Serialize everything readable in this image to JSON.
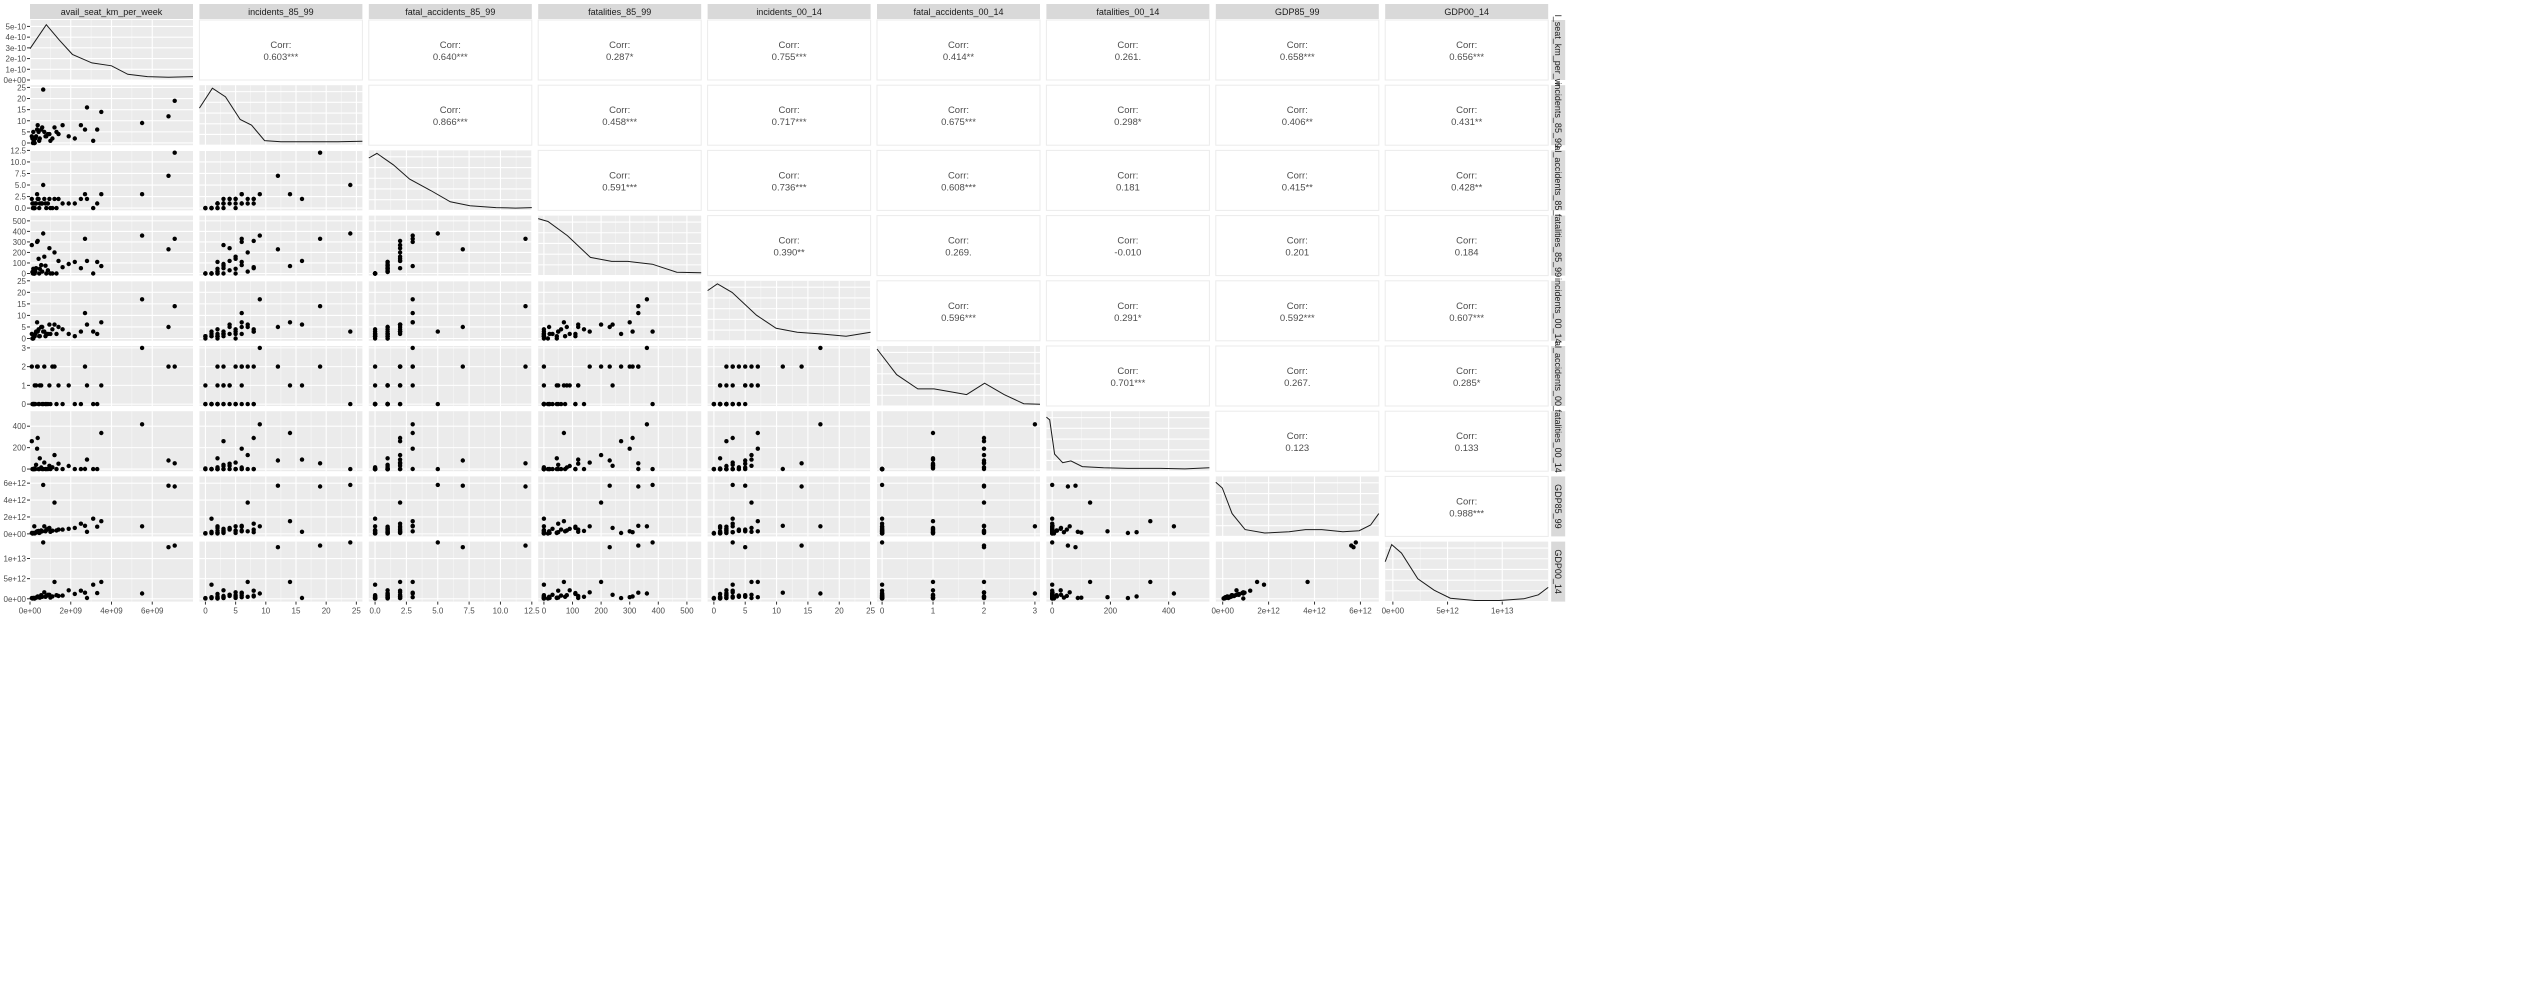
{
  "chart_data": {
    "type": "scatter",
    "variables": [
      "avail_seat_km_per_week",
      "incidents_85_99",
      "fatal_accidents_85_99",
      "fatalities_85_99",
      "incidents_00_14",
      "fatal_accidents_00_14",
      "fatalities_00_14",
      "GDP85_99",
      "GDP00_14"
    ],
    "strip_labels_right": [
      "l_seat_km_per_w",
      "incidents_85_99",
      "al_accidents_85_",
      "fatalities_85_99",
      "incidents_00_14",
      "al_accidents_00_",
      "fatalities_00_14",
      "GDP85_99",
      "GDP00_14"
    ],
    "corr_label": "Corr:",
    "correlations": [
      [
        null,
        "0.603***",
        "0.640***",
        "0.287*",
        "0.755***",
        "0.414**",
        "0.261.",
        "0.658***",
        "0.656***"
      ],
      [
        null,
        null,
        "0.866***",
        "0.458***",
        "0.717***",
        "0.675***",
        "0.298*",
        "0.406**",
        "0.431**"
      ],
      [
        null,
        null,
        null,
        "0.591***",
        "0.736***",
        "0.608***",
        "0.181",
        "0.415**",
        "0.428**"
      ],
      [
        null,
        null,
        null,
        null,
        "0.390**",
        "0.269.",
        "-0.010",
        "0.201",
        "0.184"
      ],
      [
        null,
        null,
        null,
        null,
        null,
        "0.596***",
        "0.291*",
        "0.592***",
        "0.607***"
      ],
      [
        null,
        null,
        null,
        null,
        null,
        null,
        "0.701***",
        "0.267.",
        "0.285*"
      ],
      [
        null,
        null,
        null,
        null,
        null,
        null,
        null,
        "0.123",
        "0.133"
      ],
      [
        null,
        null,
        null,
        null,
        null,
        null,
        null,
        null,
        "0.988***"
      ]
    ],
    "axes": [
      {
        "lim": [
          0,
          8000000000
        ],
        "ticks": [
          0,
          2000000000,
          4000000000,
          6000000000
        ],
        "labels": [
          "0e+00",
          "2e+09",
          "4e+09",
          "6e+09"
        ]
      },
      {
        "lim": [
          -1,
          26
        ],
        "ticks": [
          0,
          5,
          10,
          15,
          20,
          25
        ],
        "labels": [
          "0",
          "5",
          "10",
          "15",
          "20",
          "25"
        ]
      },
      {
        "lim": [
          -0.5,
          12.5
        ],
        "ticks": [
          0,
          2.5,
          5,
          7.5,
          10,
          12.5
        ],
        "labels": [
          "0.0",
          "2.5",
          "5.0",
          "7.5",
          "10.0",
          "12.5"
        ]
      },
      {
        "lim": [
          -20,
          550
        ],
        "ticks": [
          0,
          100,
          200,
          300,
          400,
          500
        ],
        "labels": [
          "0",
          "100",
          "200",
          "300",
          "400",
          "500"
        ]
      },
      {
        "lim": [
          -1,
          25
        ],
        "ticks": [
          0,
          5,
          10,
          15,
          20,
          25
        ],
        "labels": [
          "0",
          "5",
          "10",
          "15",
          "20",
          "25"
        ]
      },
      {
        "lim": [
          -0.1,
          3.1
        ],
        "ticks": [
          0,
          1,
          2,
          3
        ],
        "labels": [
          "0",
          "1",
          "2",
          "3"
        ]
      },
      {
        "lim": [
          -20,
          540
        ],
        "ticks": [
          0,
          200,
          400
        ],
        "labels": [
          "0",
          "200",
          "400"
        ]
      },
      {
        "lim": [
          -300000000000,
          6800000000000
        ],
        "ticks": [
          0,
          2000000000000,
          4000000000000,
          6000000000000
        ],
        "labels": [
          "0e+00",
          "2e+12",
          "4e+12",
          "6e+12"
        ]
      },
      {
        "lim": [
          -700000000000,
          14200000000000
        ],
        "ticks": [
          0,
          5000000000000,
          10000000000000
        ],
        "labels": [
          "0e+00",
          "5e+12",
          "1e+13"
        ]
      }
    ],
    "density_y_axis": {
      "lim": [
        0,
        5.6e-10
      ],
      "ticks": [
        0,
        1e-10,
        2e-10,
        3e-10,
        4e-10,
        5e-10
      ],
      "labels": [
        "0e+00",
        "1e-10",
        "2e-10",
        "3e-10",
        "4e-10",
        "5e-10"
      ]
    },
    "densities": [
      [
        [
          0,
          0.55
        ],
        [
          0.1,
          0.97
        ],
        [
          0.18,
          0.7
        ],
        [
          0.26,
          0.45
        ],
        [
          0.38,
          0.3
        ],
        [
          0.5,
          0.25
        ],
        [
          0.6,
          0.1
        ],
        [
          0.72,
          0.06
        ],
        [
          0.85,
          0.05
        ],
        [
          1,
          0.06
        ]
      ],
      [
        [
          0,
          0.65
        ],
        [
          0.08,
          1
        ],
        [
          0.16,
          0.85
        ],
        [
          0.25,
          0.45
        ],
        [
          0.32,
          0.35
        ],
        [
          0.4,
          0.08
        ],
        [
          0.5,
          0.06
        ],
        [
          0.7,
          0.06
        ],
        [
          0.85,
          0.06
        ],
        [
          1,
          0.07
        ]
      ],
      [
        [
          0,
          0.92
        ],
        [
          0.05,
          1
        ],
        [
          0.15,
          0.8
        ],
        [
          0.25,
          0.55
        ],
        [
          0.38,
          0.35
        ],
        [
          0.5,
          0.15
        ],
        [
          0.62,
          0.08
        ],
        [
          0.78,
          0.05
        ],
        [
          0.9,
          0.04
        ],
        [
          1,
          0.05
        ]
      ],
      [
        [
          0,
          1
        ],
        [
          0.06,
          0.95
        ],
        [
          0.18,
          0.7
        ],
        [
          0.32,
          0.32
        ],
        [
          0.45,
          0.25
        ],
        [
          0.55,
          0.25
        ],
        [
          0.7,
          0.2
        ],
        [
          0.85,
          0.06
        ],
        [
          1,
          0.05
        ]
      ],
      [
        [
          0,
          0.88
        ],
        [
          0.06,
          1
        ],
        [
          0.15,
          0.85
        ],
        [
          0.3,
          0.45
        ],
        [
          0.42,
          0.22
        ],
        [
          0.55,
          0.15
        ],
        [
          0.7,
          0.12
        ],
        [
          0.85,
          0.08
        ],
        [
          1,
          0.15
        ]
      ],
      [
        [
          0,
          1
        ],
        [
          0.12,
          0.55
        ],
        [
          0.25,
          0.3
        ],
        [
          0.35,
          0.3
        ],
        [
          0.45,
          0.25
        ],
        [
          0.55,
          0.2
        ],
        [
          0.66,
          0.4
        ],
        [
          0.78,
          0.2
        ],
        [
          0.9,
          0.04
        ],
        [
          1,
          0.03
        ]
      ],
      [
        [
          0,
          0.95
        ],
        [
          0.02,
          0.9
        ],
        [
          0.05,
          0.3
        ],
        [
          0.1,
          0.15
        ],
        [
          0.15,
          0.18
        ],
        [
          0.22,
          0.08
        ],
        [
          0.35,
          0.06
        ],
        [
          0.5,
          0.05
        ],
        [
          0.7,
          0.05
        ],
        [
          0.85,
          0.04
        ],
        [
          1,
          0.06
        ]
      ],
      [
        [
          0,
          0.95
        ],
        [
          0.04,
          0.85
        ],
        [
          0.1,
          0.4
        ],
        [
          0.18,
          0.12
        ],
        [
          0.3,
          0.06
        ],
        [
          0.45,
          0.08
        ],
        [
          0.55,
          0.12
        ],
        [
          0.65,
          0.12
        ],
        [
          0.78,
          0.08
        ],
        [
          0.88,
          0.1
        ],
        [
          0.95,
          0.2
        ],
        [
          1,
          0.4
        ]
      ],
      [
        [
          0,
          0.7
        ],
        [
          0.04,
          1
        ],
        [
          0.1,
          0.85
        ],
        [
          0.2,
          0.4
        ],
        [
          0.3,
          0.2
        ],
        [
          0.4,
          0.06
        ],
        [
          0.55,
          0.02
        ],
        [
          0.7,
          0.02
        ],
        [
          0.85,
          0.05
        ],
        [
          0.94,
          0.12
        ],
        [
          1,
          0.25
        ]
      ]
    ],
    "observations": [
      {
        "v": [
          650000000,
          24,
          5,
          380,
          3,
          0,
          0,
          5800000000000,
          14000000000000
        ]
      },
      {
        "v": [
          210000000,
          2,
          0,
          0,
          1,
          0,
          0,
          900000000000,
          60000000000
        ]
      },
      {
        "v": [
          1900000000,
          3,
          1,
          90,
          2,
          1,
          29,
          600000000000,
          2100000000000
        ]
      },
      {
        "v": [
          7100000000,
          19,
          12,
          330,
          14,
          2,
          54,
          5600000000000,
          13200000000000
        ]
      },
      {
        "v": [
          2800000000,
          16,
          2,
          120,
          6,
          1,
          88,
          250000000000,
          200000000000
        ]
      },
      {
        "v": [
          6800000000,
          12,
          7,
          230,
          5,
          2,
          80,
          5700000000000,
          12800000000000
        ]
      },
      {
        "v": [
          5500000000,
          9,
          3,
          360,
          17,
          3,
          418,
          900000000000,
          1300000000000
        ]
      },
      {
        "v": [
          3500000000,
          14,
          3,
          70,
          7,
          1,
          337,
          1500000000000,
          4200000000000
        ]
      },
      {
        "v": [
          140000000,
          0,
          0,
          0,
          0,
          0,
          0,
          50000000000,
          100000000000
        ]
      },
      {
        "v": [
          180000000,
          1,
          0,
          0,
          1,
          0,
          0,
          80000000000,
          150000000000
        ]
      },
      {
        "v": [
          260000000,
          2,
          1,
          20,
          2,
          0,
          0,
          120000000000,
          200000000000
        ]
      },
      {
        "v": [
          300000000,
          3,
          1,
          50,
          3,
          1,
          40,
          200000000000,
          300000000000
        ]
      },
      {
        "v": [
          420000000,
          5,
          2,
          140,
          4,
          0,
          0,
          350000000000,
          500000000000
        ]
      },
      {
        "v": [
          550000000,
          6,
          1,
          80,
          5,
          1,
          15,
          400000000000,
          900000000000
        ]
      },
      {
        "v": [
          880000000,
          4,
          1,
          30,
          2,
          0,
          0,
          600000000000,
          1000000000000
        ]
      },
      {
        "v": [
          1200000000,
          7,
          2,
          200,
          6,
          2,
          130,
          3700000000000,
          4200000000000
        ]
      },
      {
        "v": [
          1600000000,
          8,
          1,
          60,
          4,
          0,
          0,
          500000000000,
          800000000000
        ]
      },
      {
        "v": [
          2200000000,
          2,
          1,
          110,
          1,
          0,
          0,
          700000000000,
          1200000000000
        ]
      },
      {
        "v": [
          3100000000,
          1,
          0,
          0,
          3,
          0,
          0,
          1800000000000,
          3500000000000
        ]
      },
      {
        "v": [
          90000000,
          3,
          2,
          270,
          2,
          2,
          260,
          100000000000,
          180000000000
        ]
      },
      {
        "v": [
          350000000,
          6,
          3,
          300,
          7,
          2,
          190,
          300000000000,
          400000000000
        ]
      },
      {
        "v": [
          480000000,
          2,
          1,
          45,
          1,
          1,
          100,
          150000000000,
          260000000000
        ]
      },
      {
        "v": [
          700000000,
          5,
          2,
          160,
          3,
          2,
          60,
          900000000000,
          1600000000000
        ]
      },
      {
        "v": [
          1000000000,
          1,
          0,
          0,
          2,
          0,
          0,
          250000000000,
          300000000000
        ]
      },
      {
        "v": [
          1400000000,
          4,
          2,
          120,
          5,
          1,
          50,
          500000000000,
          700000000000
        ]
      },
      {
        "v": [
          2500000000,
          8,
          2,
          50,
          3,
          0,
          0,
          1200000000000,
          2000000000000
        ]
      },
      {
        "v": [
          230000000,
          0,
          0,
          0,
          1,
          1,
          6,
          60000000000,
          100000000000
        ]
      },
      {
        "v": [
          600000000,
          7,
          1,
          18,
          5,
          0,
          0,
          300000000000,
          500000000000
        ]
      },
      {
        "v": [
          800000000,
          3,
          0,
          0,
          2,
          0,
          0,
          450000000000,
          700000000000
        ]
      },
      {
        "v": [
          1100000000,
          2,
          0,
          0,
          4,
          2,
          16,
          380000000000,
          600000000000
        ]
      },
      {
        "v": [
          3300000000,
          6,
          1,
          110,
          2,
          0,
          0,
          850000000000,
          1400000000000
        ]
      },
      {
        "v": [
          160000000,
          5,
          1,
          45,
          0,
          0,
          0,
          100000000000,
          200000000000
        ]
      },
      {
        "v": [
          380000000,
          8,
          2,
          310,
          3,
          2,
          290,
          200000000000,
          600000000000
        ]
      },
      {
        "v": [
          950000000,
          4,
          2,
          240,
          6,
          1,
          30,
          700000000000,
          1000000000000
        ]
      },
      {
        "v": [
          1300000000,
          5,
          0,
          0,
          2,
          0,
          0,
          400000000000,
          900000000000
        ]
      },
      {
        "v": [
          2700000000,
          6,
          3,
          330,
          11,
          2,
          1,
          950000000000,
          1500000000000
        ]
      },
      {
        "v": [
          120000000,
          2,
          1,
          14,
          0,
          0,
          0,
          40000000000,
          90000000000
        ]
      },
      {
        "v": [
          450000000,
          1,
          0,
          0,
          1,
          0,
          0,
          120000000000,
          400000000000
        ]
      },
      {
        "v": [
          760000000,
          3,
          1,
          74,
          1,
          0,
          0,
          300000000000,
          500000000000
        ]
      },
      {
        "v": [
          200000000,
          0,
          0,
          0,
          1,
          0,
          0,
          80000000000,
          170000000000
        ]
      }
    ]
  }
}
